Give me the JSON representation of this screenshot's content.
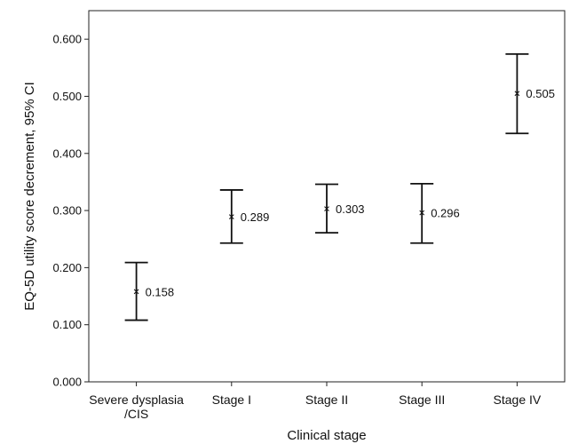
{
  "chart_data": {
    "type": "errorbar",
    "title": "",
    "xlabel": "Clinical stage",
    "ylabel": "EQ-5D utility score decrement, 95% CI",
    "ylim": [
      0,
      0.65
    ],
    "yticks": [
      "0.000",
      "0.100",
      "0.200",
      "0.300",
      "0.400",
      "0.500",
      "0.600"
    ],
    "grid": false,
    "categories": [
      [
        "Severe dysplasia",
        "/CIS"
      ],
      [
        "Stage I"
      ],
      [
        "Stage II"
      ],
      [
        "Stage III"
      ],
      [
        "Stage IV"
      ]
    ],
    "series": [
      {
        "points": [
          {
            "mean": 0.158,
            "low": 0.108,
            "high": 0.209,
            "label": "0.158"
          },
          {
            "mean": 0.289,
            "low": 0.243,
            "high": 0.336,
            "label": "0.289"
          },
          {
            "mean": 0.303,
            "low": 0.261,
            "high": 0.346,
            "label": "0.303"
          },
          {
            "mean": 0.296,
            "low": 0.243,
            "high": 0.347,
            "label": "0.296"
          },
          {
            "mean": 0.505,
            "low": 0.435,
            "high": 0.574,
            "label": "0.505"
          }
        ]
      }
    ],
    "mean_marker": "x"
  }
}
